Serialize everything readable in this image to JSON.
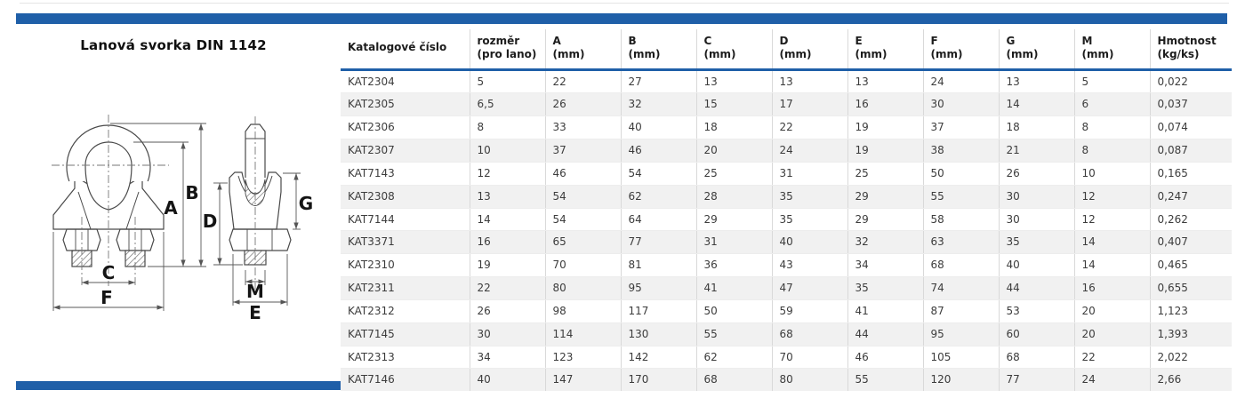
{
  "header": {
    "title": "Lanová svorka DIN 1142"
  },
  "colors": {
    "accent": "#1f5fa8",
    "alt_row": "#f1f1f1"
  },
  "drawing": {
    "labels": {
      "a": "A",
      "b": "B",
      "c": "C",
      "d": "D",
      "e": "E",
      "f": "F",
      "g": "G",
      "m": "M"
    }
  },
  "table": {
    "columns": [
      {
        "l1": "Katalogové číslo",
        "l2": ""
      },
      {
        "l1": "rozměr",
        "l2": "(pro lano)"
      },
      {
        "l1": "A",
        "l2": "(mm)"
      },
      {
        "l1": "B",
        "l2": "(mm)"
      },
      {
        "l1": "C",
        "l2": "(mm)"
      },
      {
        "l1": "D",
        "l2": "(mm)"
      },
      {
        "l1": "E",
        "l2": "(mm)"
      },
      {
        "l1": "F",
        "l2": "(mm)"
      },
      {
        "l1": "G",
        "l2": "(mm)"
      },
      {
        "l1": "M",
        "l2": "(mm)"
      },
      {
        "l1": "Hmotnost",
        "l2": "(kg/ks)"
      }
    ],
    "rows": [
      [
        "KAT2304",
        "5",
        "22",
        "27",
        "13",
        "13",
        "13",
        "24",
        "13",
        "5",
        "0,022"
      ],
      [
        "KAT2305",
        "6,5",
        "26",
        "32",
        "15",
        "17",
        "16",
        "30",
        "14",
        "6",
        "0,037"
      ],
      [
        "KAT2306",
        "8",
        "33",
        "40",
        "18",
        "22",
        "19",
        "37",
        "18",
        "8",
        "0,074"
      ],
      [
        "KAT2307",
        "10",
        "37",
        "46",
        "20",
        "24",
        "19",
        "38",
        "21",
        "8",
        "0,087"
      ],
      [
        "KAT7143",
        "12",
        "46",
        "54",
        "25",
        "31",
        "25",
        "50",
        "26",
        "10",
        "0,165"
      ],
      [
        "KAT2308",
        "13",
        "54",
        "62",
        "28",
        "35",
        "29",
        "55",
        "30",
        "12",
        "0,247"
      ],
      [
        "KAT7144",
        "14",
        "54",
        "64",
        "29",
        "35",
        "29",
        "58",
        "30",
        "12",
        "0,262"
      ],
      [
        "KAT3371",
        "16",
        "65",
        "77",
        "31",
        "40",
        "32",
        "63",
        "35",
        "14",
        "0,407"
      ],
      [
        "KAT2310",
        "19",
        "70",
        "81",
        "36",
        "43",
        "34",
        "68",
        "40",
        "14",
        "0,465"
      ],
      [
        "KAT2311",
        "22",
        "80",
        "95",
        "41",
        "47",
        "35",
        "74",
        "44",
        "16",
        "0,655"
      ],
      [
        "KAT2312",
        "26",
        "98",
        "117",
        "50",
        "59",
        "41",
        "87",
        "53",
        "20",
        "1,123"
      ],
      [
        "KAT7145",
        "30",
        "114",
        "130",
        "55",
        "68",
        "44",
        "95",
        "60",
        "20",
        "1,393"
      ],
      [
        "KAT2313",
        "34",
        "123",
        "142",
        "62",
        "70",
        "46",
        "105",
        "68",
        "22",
        "2,022"
      ],
      [
        "KAT7146",
        "40",
        "147",
        "170",
        "68",
        "80",
        "55",
        "120",
        "77",
        "24",
        "2,66"
      ]
    ]
  }
}
